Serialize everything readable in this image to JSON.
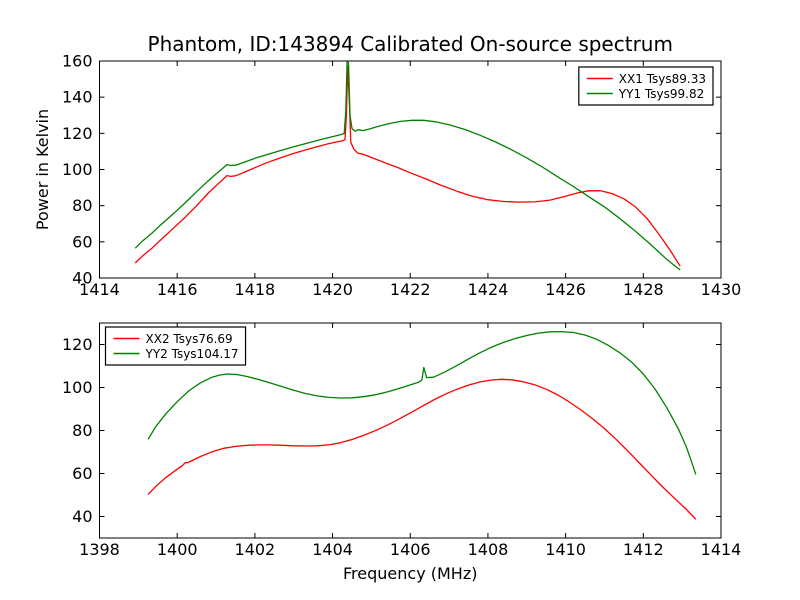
{
  "figure": {
    "title": "Phantom, ID:143894 Calibrated On-source spectrum",
    "background": "#ffffff",
    "text_color": "#000000",
    "red_color": "#ff0000",
    "green_color": "#008000"
  },
  "chart_data": [
    {
      "type": "line",
      "title": "Phantom, ID:143894 Calibrated On-source spectrum",
      "xlabel": "",
      "ylabel": "Power in Kelvin",
      "xlim": [
        1414,
        1430
      ],
      "ylim": [
        40,
        160
      ],
      "xticks": [
        1414,
        1416,
        1418,
        1420,
        1422,
        1424,
        1426,
        1428,
        1430
      ],
      "yticks": [
        40,
        60,
        80,
        100,
        120,
        140,
        160
      ],
      "grid": false,
      "legend_position": "upper right",
      "series": [
        {
          "name": "XX1 Tsys89.33",
          "color": "#ff0000",
          "points": [
            [
              1414.92,
              48.3
            ],
            [
              1415.1,
              52
            ],
            [
              1415.35,
              56.5
            ],
            [
              1415.6,
              61.5
            ],
            [
              1415.9,
              67.5
            ],
            [
              1416.2,
              73.5
            ],
            [
              1416.5,
              80
            ],
            [
              1416.8,
              87
            ],
            [
              1417.0,
              91
            ],
            [
              1417.15,
              94
            ],
            [
              1417.28,
              96.6
            ],
            [
              1417.38,
              96.2
            ],
            [
              1417.5,
              96.5
            ],
            [
              1417.75,
              98.7
            ],
            [
              1418.0,
              101
            ],
            [
              1418.3,
              103.7
            ],
            [
              1418.6,
              106
            ],
            [
              1419.0,
              108.9
            ],
            [
              1419.4,
              111.4
            ],
            [
              1419.7,
              113.1
            ],
            [
              1419.9,
              114.3
            ],
            [
              1420.1,
              115.2
            ],
            [
              1420.25,
              115.8
            ],
            [
              1420.32,
              116.5
            ],
            [
              1420.36,
              131
            ],
            [
              1420.39,
              157
            ],
            [
              1420.43,
              138
            ],
            [
              1420.47,
              115
            ],
            [
              1420.55,
              111.2
            ],
            [
              1420.65,
              109
            ],
            [
              1420.75,
              108.6
            ],
            [
              1420.9,
              107.5
            ],
            [
              1421.1,
              105.8
            ],
            [
              1421.4,
              103.3
            ],
            [
              1421.7,
              100.9
            ],
            [
              1422.0,
              98.2
            ],
            [
              1422.4,
              94.8
            ],
            [
              1422.8,
              91.2
            ],
            [
              1423.2,
              88
            ],
            [
              1423.6,
              85.2
            ],
            [
              1424.0,
              83.3
            ],
            [
              1424.4,
              82.3
            ],
            [
              1424.8,
              82.0
            ],
            [
              1425.2,
              82.1
            ],
            [
              1425.6,
              83.1
            ],
            [
              1426.0,
              85.2
            ],
            [
              1426.3,
              87
            ],
            [
              1426.6,
              88.3
            ],
            [
              1426.9,
              88.2
            ],
            [
              1427.2,
              86.7
            ],
            [
              1427.5,
              83.8
            ],
            [
              1427.8,
              79.3
            ],
            [
              1428.1,
              72.8
            ],
            [
              1428.4,
              64.3
            ],
            [
              1428.7,
              55
            ],
            [
              1428.95,
              46.5
            ]
          ]
        },
        {
          "name": "YY1 Tsys99.82",
          "color": "#008000",
          "points": [
            [
              1414.92,
              56.5
            ],
            [
              1415.1,
              60.3
            ],
            [
              1415.35,
              64.8
            ],
            [
              1415.6,
              69.8
            ],
            [
              1415.9,
              75.5
            ],
            [
              1416.2,
              81.5
            ],
            [
              1416.5,
              87.7
            ],
            [
              1416.8,
              93.8
            ],
            [
              1417.0,
              97.5
            ],
            [
              1417.15,
              100.3
            ],
            [
              1417.28,
              102.7
            ],
            [
              1417.38,
              102.2
            ],
            [
              1417.5,
              102.4
            ],
            [
              1417.75,
              104.2
            ],
            [
              1418.0,
              106.2
            ],
            [
              1418.3,
              108.2
            ],
            [
              1418.6,
              110.1
            ],
            [
              1419.0,
              112.6
            ],
            [
              1419.4,
              114.9
            ],
            [
              1419.7,
              116.6
            ],
            [
              1420.0,
              118.2
            ],
            [
              1420.2,
              119.2
            ],
            [
              1420.3,
              119.9
            ],
            [
              1420.34,
              132
            ],
            [
              1420.375,
              159.5
            ],
            [
              1420.41,
              159
            ],
            [
              1420.45,
              130
            ],
            [
              1420.5,
              122.6
            ],
            [
              1420.58,
              121.2
            ],
            [
              1420.66,
              122
            ],
            [
              1420.78,
              121.5
            ],
            [
              1420.95,
              122.4
            ],
            [
              1421.15,
              123.7
            ],
            [
              1421.45,
              125.4
            ],
            [
              1421.75,
              126.6
            ],
            [
              1422.05,
              127.2
            ],
            [
              1422.35,
              127.2
            ],
            [
              1422.65,
              126.4
            ],
            [
              1423.0,
              124.7
            ],
            [
              1423.4,
              122.2
            ],
            [
              1423.8,
              118.9
            ],
            [
              1424.2,
              115.2
            ],
            [
              1424.6,
              111
            ],
            [
              1425.0,
              106.4
            ],
            [
              1425.4,
              101.4
            ],
            [
              1425.8,
              95.9
            ],
            [
              1426.2,
              90.6
            ],
            [
              1426.6,
              84.9
            ],
            [
              1427.0,
              79.3
            ],
            [
              1427.4,
              72.8
            ],
            [
              1427.8,
              65.8
            ],
            [
              1428.2,
              58.3
            ],
            [
              1428.6,
              50.4
            ],
            [
              1428.95,
              44.4
            ]
          ]
        }
      ]
    },
    {
      "type": "line",
      "title": "",
      "xlabel": "Frequency (MHz)",
      "ylabel": "",
      "xlim": [
        1398,
        1414
      ],
      "ylim": [
        30,
        130
      ],
      "xticks": [
        1398,
        1400,
        1402,
        1404,
        1406,
        1408,
        1410,
        1412,
        1414
      ],
      "yticks": [
        40,
        60,
        80,
        100,
        120
      ],
      "grid": false,
      "legend_position": "upper left",
      "series": [
        {
          "name": "XX2 Tsys76.69",
          "color": "#ff0000",
          "points": [
            [
              1399.25,
              50.3
            ],
            [
              1399.45,
              54
            ],
            [
              1399.7,
              58
            ],
            [
              1400.0,
              62
            ],
            [
              1400.13,
              63.6
            ],
            [
              1400.2,
              65
            ],
            [
              1400.28,
              65.1
            ],
            [
              1400.6,
              67.9
            ],
            [
              1400.9,
              70.1
            ],
            [
              1401.2,
              71.7
            ],
            [
              1401.5,
              72.6
            ],
            [
              1401.8,
              73.1
            ],
            [
              1402.1,
              73.3
            ],
            [
              1402.4,
              73.3
            ],
            [
              1402.7,
              73.1
            ],
            [
              1403.0,
              72.9
            ],
            [
              1403.3,
              72.8
            ],
            [
              1403.6,
              72.9
            ],
            [
              1403.9,
              73.3
            ],
            [
              1404.2,
              74.3
            ],
            [
              1404.5,
              75.8
            ],
            [
              1404.8,
              77.7
            ],
            [
              1405.1,
              79.9
            ],
            [
              1405.4,
              82.4
            ],
            [
              1405.7,
              85.2
            ],
            [
              1406.0,
              88.2
            ],
            [
              1406.3,
              91.2
            ],
            [
              1406.6,
              94.2
            ],
            [
              1406.9,
              96.9
            ],
            [
              1407.2,
              99.2
            ],
            [
              1407.5,
              101.1
            ],
            [
              1407.8,
              102.6
            ],
            [
              1408.1,
              103.5
            ],
            [
              1408.35,
              103.8
            ],
            [
              1408.6,
              103.6
            ],
            [
              1408.9,
              102.7
            ],
            [
              1409.2,
              101.3
            ],
            [
              1409.5,
              99.2
            ],
            [
              1409.8,
              96.5
            ],
            [
              1410.1,
              93.2
            ],
            [
              1410.4,
              89.5
            ],
            [
              1410.7,
              85.4
            ],
            [
              1411.0,
              80.9
            ],
            [
              1411.3,
              75.9
            ],
            [
              1411.6,
              70.5
            ],
            [
              1411.9,
              64.9
            ],
            [
              1412.2,
              59.2
            ],
            [
              1412.5,
              53.7
            ],
            [
              1412.8,
              48.5
            ],
            [
              1413.1,
              43.5
            ],
            [
              1413.35,
              38.7
            ]
          ]
        },
        {
          "name": "YY2 Tsys104.17",
          "color": "#008000",
          "points": [
            [
              1399.25,
              75.9
            ],
            [
              1399.45,
              81.8
            ],
            [
              1399.7,
              87.6
            ],
            [
              1400.0,
              93.4
            ],
            [
              1400.3,
              98.4
            ],
            [
              1400.6,
              102.2
            ],
            [
              1400.9,
              104.8
            ],
            [
              1401.1,
              105.8
            ],
            [
              1401.3,
              106.3
            ],
            [
              1401.55,
              106
            ],
            [
              1401.8,
              105.1
            ],
            [
              1402.1,
              103.7
            ],
            [
              1402.4,
              102.1
            ],
            [
              1402.7,
              100.4
            ],
            [
              1403.0,
              98.7
            ],
            [
              1403.3,
              97.2
            ],
            [
              1403.6,
              96.1
            ],
            [
              1403.9,
              95.4
            ],
            [
              1404.2,
              95.1
            ],
            [
              1404.5,
              95.2
            ],
            [
              1404.8,
              95.7
            ],
            [
              1405.1,
              96.6
            ],
            [
              1405.4,
              97.9
            ],
            [
              1405.7,
              99.5
            ],
            [
              1406.0,
              101.2
            ],
            [
              1406.22,
              102.5
            ],
            [
              1406.3,
              103.5
            ],
            [
              1406.35,
              109.3
            ],
            [
              1406.42,
              104.6
            ],
            [
              1406.6,
              104.8
            ],
            [
              1406.9,
              107.3
            ],
            [
              1407.2,
              110.2
            ],
            [
              1407.5,
              113.3
            ],
            [
              1407.8,
              116.2
            ],
            [
              1408.1,
              118.8
            ],
            [
              1408.4,
              121
            ],
            [
              1408.7,
              122.8
            ],
            [
              1409.0,
              124.2
            ],
            [
              1409.3,
              125.3
            ],
            [
              1409.6,
              125.9
            ],
            [
              1409.9,
              126
            ],
            [
              1410.2,
              125.6
            ],
            [
              1410.5,
              124.4
            ],
            [
              1410.8,
              122.4
            ],
            [
              1411.1,
              119.6
            ],
            [
              1411.4,
              116.1
            ],
            [
              1411.7,
              111.8
            ],
            [
              1412.0,
              106.3
            ],
            [
              1412.3,
              99.3
            ],
            [
              1412.6,
              90.8
            ],
            [
              1412.9,
              80.8
            ],
            [
              1413.1,
              72.8
            ],
            [
              1413.25,
              65
            ],
            [
              1413.35,
              59.6
            ]
          ]
        }
      ]
    }
  ]
}
